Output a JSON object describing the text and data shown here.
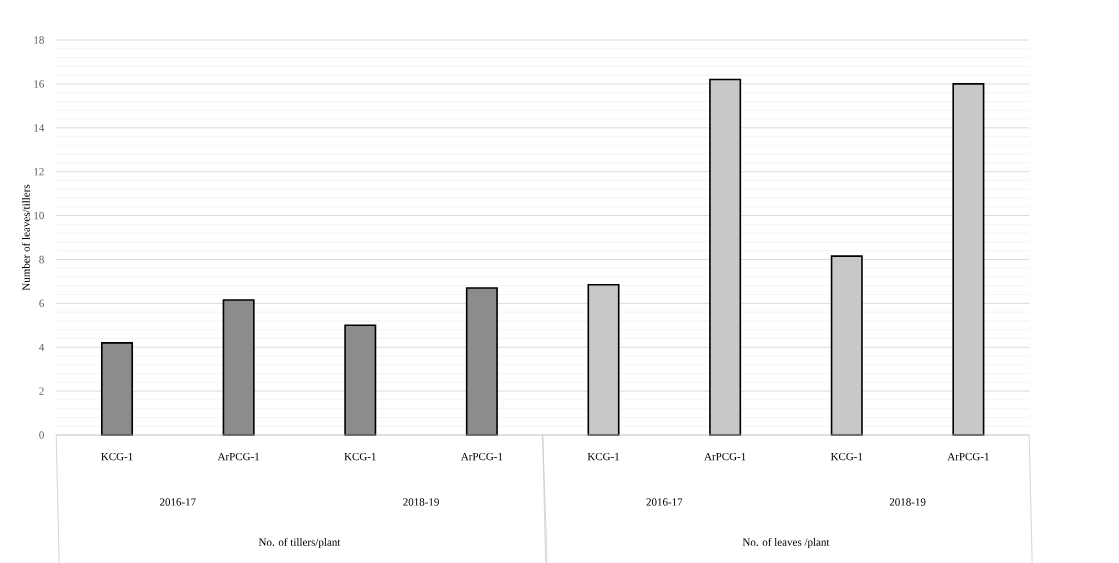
{
  "chart_data": {
    "type": "bar",
    "ylabel": "Number of leaves/tillers",
    "categories": [
      "KCG-1",
      "ArPCG-1",
      "KCG-1",
      "ArPCG-1",
      "KCG-1",
      "ArPCG-1",
      "KCG-1",
      "ArPCG-1"
    ],
    "series": [
      {
        "color": "#8c8c8c",
        "values": [
          4.2,
          6.15,
          5.0,
          6.7,
          null,
          null,
          null,
          null
        ]
      },
      {
        "color": "#c8c8c8",
        "values": [
          null,
          null,
          null,
          null,
          6.85,
          16.2,
          8.15,
          16.0
        ]
      }
    ],
    "ylim": [
      0,
      18
    ],
    "yticks": [
      0,
      2,
      4,
      6,
      8,
      10,
      12,
      14,
      16,
      18
    ],
    "grid": "y",
    "annotations": [
      "2016-17",
      "2018-19",
      "2016-17",
      "2018-19",
      "No. of tillers/plant",
      "No. of leaves /plant"
    ]
  }
}
